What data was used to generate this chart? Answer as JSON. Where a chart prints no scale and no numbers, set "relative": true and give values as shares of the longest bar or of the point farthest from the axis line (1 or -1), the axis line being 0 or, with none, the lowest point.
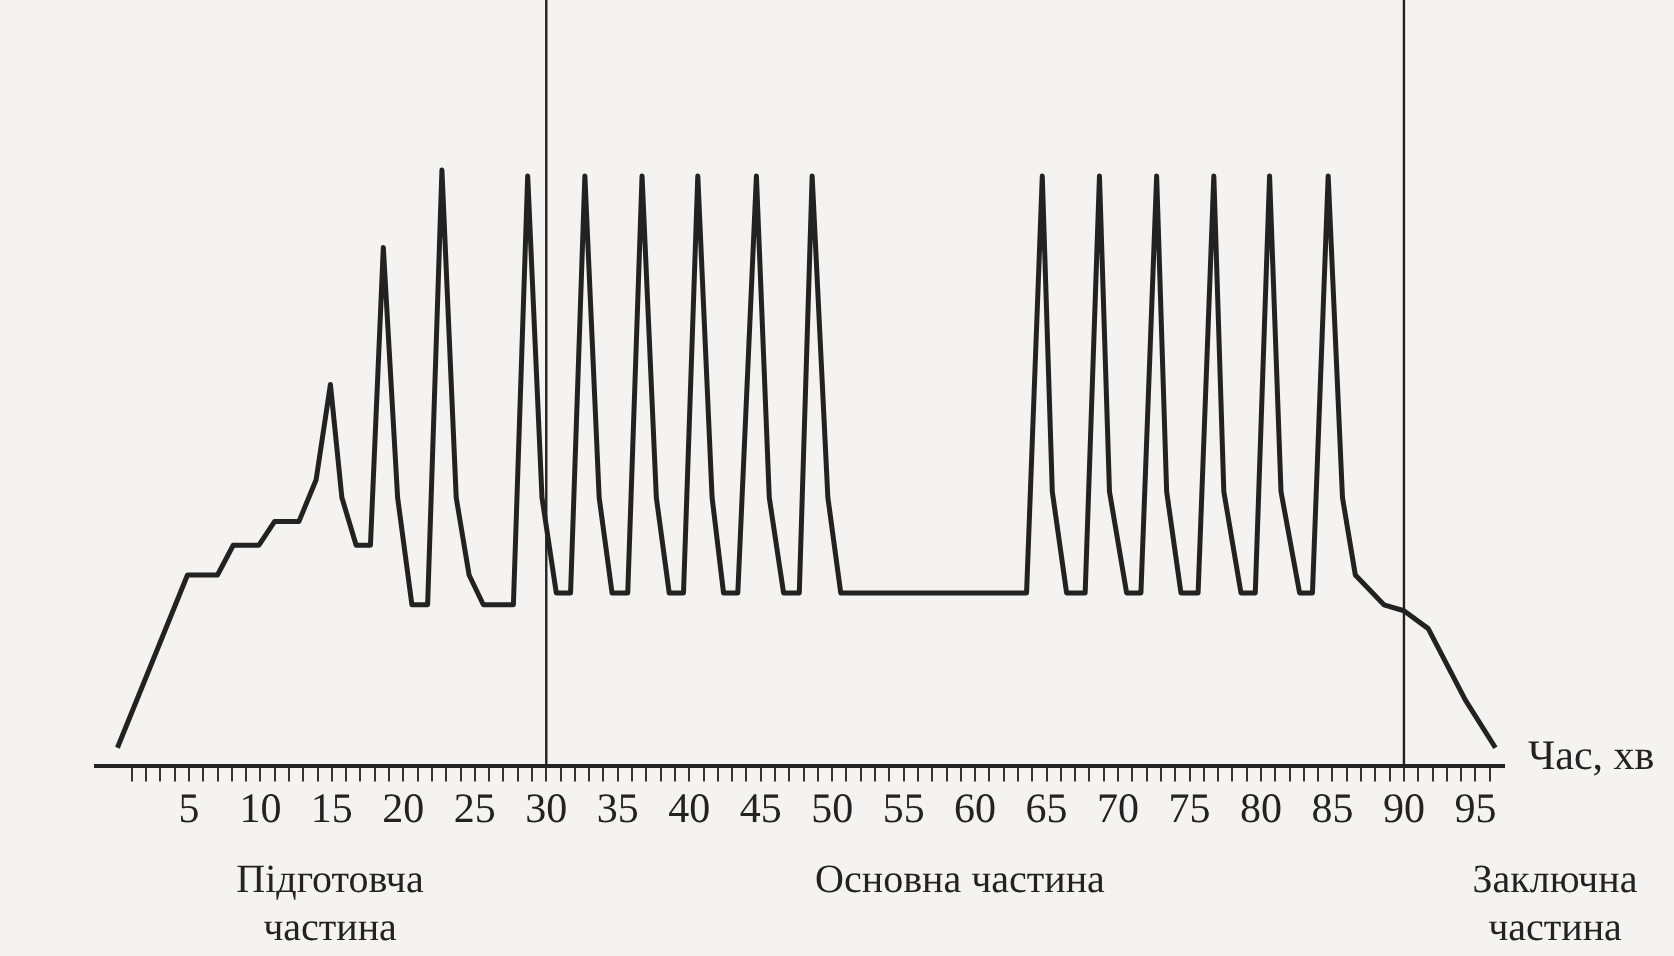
{
  "chart_data": {
    "type": "line",
    "relative": true,
    "xlabel": "Час, хв",
    "x": [
      0,
      4.9,
      7,
      8.1,
      9.9,
      11,
      12.7,
      13.9,
      14.9,
      15.7,
      16.7,
      17.7,
      18.6,
      19.6,
      20.6,
      21.7,
      22.7,
      23.7,
      24.6,
      25.6,
      27.7,
      28.7,
      29.7,
      30.7,
      31.7,
      32.7,
      33.7,
      34.6,
      35.7,
      36.7,
      37.7,
      38.6,
      39.6,
      40.6,
      41.6,
      42.4,
      43.4,
      44.7,
      45.6,
      46.6,
      47.7,
      48.6,
      49.7,
      50.6,
      63.6,
      64.7,
      65.4,
      66.4,
      67.7,
      68.7,
      69.4,
      70.6,
      71.6,
      72.7,
      73.4,
      74.4,
      75.6,
      76.7,
      77.4,
      78.6,
      79.6,
      80.6,
      81.4,
      82.7,
      83.6,
      84.7,
      85.7,
      86.6,
      88.6,
      90,
      91.7,
      94.3,
      96.4
    ],
    "values": [
      0.03,
      0.32,
      0.32,
      0.37,
      0.37,
      0.41,
      0.41,
      0.48,
      0.64,
      0.45,
      0.37,
      0.37,
      0.87,
      0.45,
      0.27,
      0.27,
      1,
      0.45,
      0.32,
      0.27,
      0.27,
      0.99,
      0.45,
      0.29,
      0.29,
      0.99,
      0.45,
      0.29,
      0.29,
      0.99,
      0.45,
      0.29,
      0.29,
      0.99,
      0.45,
      0.29,
      0.29,
      0.99,
      0.45,
      0.29,
      0.29,
      0.99,
      0.45,
      0.29,
      0.29,
      0.99,
      0.46,
      0.29,
      0.29,
      0.99,
      0.46,
      0.29,
      0.29,
      0.99,
      0.46,
      0.29,
      0.29,
      0.99,
      0.46,
      0.29,
      0.29,
      0.99,
      0.46,
      0.29,
      0.29,
      0.99,
      0.45,
      0.32,
      0.27,
      0.26,
      0.23,
      0.11,
      0.03
    ],
    "color": "#222222",
    "xlim": [
      -1.5,
      97
    ],
    "xticks": [
      {
        "value": 1,
        "label": null
      },
      {
        "value": 2,
        "label": null
      },
      {
        "value": 3,
        "label": null
      },
      {
        "value": 4,
        "label": null
      },
      5,
      {
        "value": 6,
        "label": null
      },
      {
        "value": 7,
        "label": null
      },
      {
        "value": 8,
        "label": null
      },
      {
        "value": 9,
        "label": null
      },
      10,
      {
        "value": 11,
        "label": null
      },
      {
        "value": 12,
        "label": null
      },
      {
        "value": 13,
        "label": null
      },
      {
        "value": 14,
        "label": null
      },
      15,
      {
        "value": 16,
        "label": null
      },
      {
        "value": 17,
        "label": null
      },
      {
        "value": 18,
        "label": null
      },
      {
        "value": 19,
        "label": null
      },
      20,
      {
        "value": 21,
        "label": null
      },
      {
        "value": 22,
        "label": null
      },
      {
        "value": 23,
        "label": null
      },
      {
        "value": 24,
        "label": null
      },
      25,
      {
        "value": 26,
        "label": null
      },
      {
        "value": 27,
        "label": null
      },
      {
        "value": 28,
        "label": null
      },
      {
        "value": 29,
        "label": null
      },
      30,
      {
        "value": 31,
        "label": null
      },
      {
        "value": 32,
        "label": null
      },
      {
        "value": 33,
        "label": null
      },
      {
        "value": 34,
        "label": null
      },
      35,
      {
        "value": 36,
        "label": null
      },
      {
        "value": 37,
        "label": null
      },
      {
        "value": 38,
        "label": null
      },
      {
        "value": 39,
        "label": null
      },
      40,
      {
        "value": 41,
        "label": null
      },
      {
        "value": 42,
        "label": null
      },
      {
        "value": 43,
        "label": null
      },
      {
        "value": 44,
        "label": null
      },
      45,
      {
        "value": 46,
        "label": null
      },
      {
        "value": 47,
        "label": null
      },
      {
        "value": 48,
        "label": null
      },
      {
        "value": 49,
        "label": null
      },
      50,
      {
        "value": 51,
        "label": null
      },
      {
        "value": 52,
        "label": null
      },
      {
        "value": 53,
        "label": null
      },
      {
        "value": 54,
        "label": null
      },
      55,
      {
        "value": 56,
        "label": null
      },
      {
        "value": 57,
        "label": null
      },
      {
        "value": 58,
        "label": null
      },
      {
        "value": 59,
        "label": null
      },
      60,
      {
        "value": 61,
        "label": null
      },
      {
        "value": 62,
        "label": null
      },
      {
        "value": 63,
        "label": null
      },
      {
        "value": 64,
        "label": null
      },
      65,
      {
        "value": 66,
        "label": null
      },
      {
        "value": 67,
        "label": null
      },
      {
        "value": 68,
        "label": null
      },
      {
        "value": 69,
        "label": null
      },
      70,
      {
        "value": 71,
        "label": null
      },
      {
        "value": 72,
        "label": null
      },
      {
        "value": 73,
        "label": null
      },
      {
        "value": 74,
        "label": null
      },
      75,
      {
        "value": 76,
        "label": null
      },
      {
        "value": 77,
        "label": null
      },
      {
        "value": 78,
        "label": null
      },
      {
        "value": 79,
        "label": null
      },
      80,
      {
        "value": 81,
        "label": null
      },
      {
        "value": 82,
        "label": null
      },
      {
        "value": 83,
        "label": null
      },
      {
        "value": 84,
        "label": null
      },
      85,
      {
        "value": 86,
        "label": null
      },
      {
        "value": 87,
        "label": null
      },
      {
        "value": 88,
        "label": null
      },
      {
        "value": 89,
        "label": null
      },
      90,
      {
        "value": 91,
        "label": null
      },
      {
        "value": 92,
        "label": null
      },
      {
        "value": 93,
        "label": null
      },
      {
        "value": 94,
        "label": null
      },
      95,
      {
        "value": 96,
        "label": null
      }
    ],
    "ref_lines": [
      {
        "axis": "x",
        "value": 30,
        "color": "#222222"
      },
      {
        "axis": "x",
        "value": 90,
        "color": "#222222"
      }
    ],
    "annotations": [
      "Підготовча частина",
      "Основна частина",
      "Заключна частина"
    ]
  }
}
